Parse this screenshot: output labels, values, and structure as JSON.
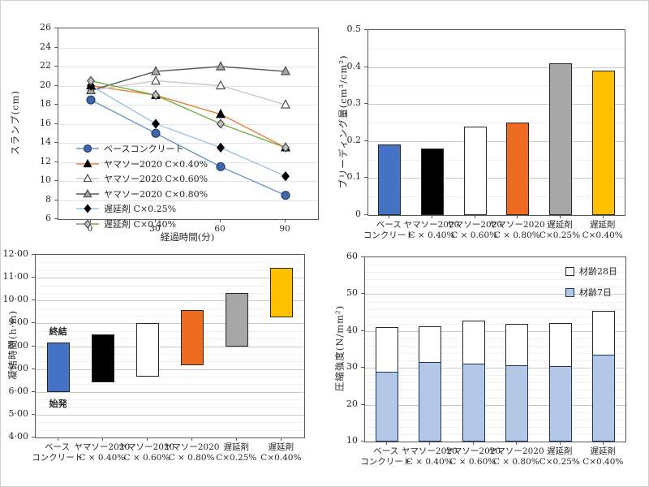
{
  "figure": {
    "background": "#ffffff",
    "text_color": "#262626"
  },
  "categories": [
    [
      "ベース",
      "コンクリート"
    ],
    [
      "ヤマソー2020",
      "C × 0.40%"
    ],
    [
      "ヤマソー2020",
      "C × 0.60%"
    ],
    [
      "ヤマソー2020",
      "C × 0.80%"
    ],
    [
      "遅延剤",
      "C×0.25%"
    ],
    [
      "遅延剤",
      "C×0.40%"
    ]
  ],
  "chart_data": [
    {
      "id": "slump",
      "type": "line",
      "ylabel": "スランプ(cm)",
      "xlabel": "経過時間(分)",
      "ylim": [
        6,
        26
      ],
      "grid_color": "#e3e3e3",
      "yticks": [
        {
          "v": 6,
          "label": "6"
        },
        {
          "v": 8,
          "label": "8"
        },
        {
          "v": 10,
          "label": "10"
        },
        {
          "v": 12,
          "label": "12"
        },
        {
          "v": 14,
          "label": "14"
        },
        {
          "v": 16,
          "label": "16"
        },
        {
          "v": 18,
          "label": "18"
        },
        {
          "v": 20,
          "label": "20"
        },
        {
          "v": 22,
          "label": "22"
        },
        {
          "v": 24,
          "label": "24"
        },
        {
          "v": 26,
          "label": "26"
        }
      ],
      "x": [
        0,
        30,
        60,
        90
      ],
      "xtick_labels": [
        "0",
        "30",
        "60",
        "90"
      ],
      "legend_position": "inside-bottom-left",
      "series": [
        {
          "name": "ベースコンクリート",
          "marker": "filled-circle",
          "marker_fill": "#4067ad",
          "marker_stroke": "#1f3864",
          "line_color": "#6e96c8",
          "values": [
            18.5,
            15.0,
            11.5,
            8.5
          ]
        },
        {
          "name": "ヤマソー2020 C×0.40%",
          "marker": "filled-triangle",
          "marker_fill": "#000000",
          "marker_stroke": "#000000",
          "line_color": "#ed7d31",
          "values": [
            20.0,
            19.0,
            17.0,
            13.5
          ]
        },
        {
          "name": "ヤマソー2020 C×0.60%",
          "marker": "open-triangle",
          "marker_fill": "#ffffff",
          "marker_stroke": "#404040",
          "line_color": "#c9c9c9",
          "values": [
            19.5,
            20.5,
            20.0,
            18.0
          ]
        },
        {
          "name": "ヤマソー2020 C×0.80%",
          "marker": "gray-triangle",
          "marker_fill": "#a6a6a6",
          "marker_stroke": "#404040",
          "line_color": "#595959",
          "values": [
            19.5,
            21.5,
            22.0,
            21.5
          ]
        },
        {
          "name": "遅延剤  C×0.25%",
          "marker": "filled-diamond",
          "marker_fill": "#000000",
          "marker_stroke": "#000000",
          "line_color": "#9dc3e6",
          "values": [
            20.0,
            16.0,
            13.5,
            10.5
          ]
        },
        {
          "name": "遅延剤  C×0.40%",
          "marker": "gray-diamond",
          "marker_fill": "#bfbfbf",
          "marker_stroke": "#404040",
          "line_color": "#70ad47",
          "values": [
            20.5,
            19.0,
            16.0,
            13.5
          ]
        }
      ]
    },
    {
      "id": "bleeding",
      "type": "bar",
      "ylabel": "ブリーディング量(cm³/cm²)",
      "ylim": [
        0,
        0.5
      ],
      "grid_color": "#c9c9c9",
      "minor_step": 0.05,
      "yticks": [
        {
          "v": 0,
          "label": "0"
        },
        {
          "v": 0.1,
          "label": "0.1"
        },
        {
          "v": 0.2,
          "label": "0.2"
        },
        {
          "v": 0.3,
          "label": "0.3"
        },
        {
          "v": 0.4,
          "label": "0.4"
        },
        {
          "v": 0.5,
          "label": "0.5"
        }
      ],
      "values": [
        0.19,
        0.18,
        0.24,
        0.25,
        0.41,
        0.39
      ],
      "colors": [
        "#4472c4",
        "#000000",
        "#ffffff",
        "#ed6b1e",
        "#a6a6a6",
        "#ffc000"
      ],
      "bar_border": "#262626"
    },
    {
      "id": "setting-time",
      "type": "floating-bar",
      "ylabel": "凝結時間(h·m)",
      "ylim": [
        4,
        12
      ],
      "grid_color": "#c9c9c9",
      "minor_step": 0.33333,
      "yticks": [
        {
          "v": 4,
          "label": "4·00"
        },
        {
          "v": 5,
          "label": "5·00"
        },
        {
          "v": 6,
          "label": "6·00"
        },
        {
          "v": 7,
          "label": "7·00"
        },
        {
          "v": 8,
          "label": "8·00"
        },
        {
          "v": 9,
          "label": "9·00"
        },
        {
          "v": 10,
          "label": "10·00"
        },
        {
          "v": 11,
          "label": "11·00"
        },
        {
          "v": 12,
          "label": "12·00"
        }
      ],
      "bars": [
        {
          "start": 6.0,
          "end": 8.17
        },
        {
          "start": 6.4,
          "end": 8.5
        },
        {
          "start": 6.67,
          "end": 9.0
        },
        {
          "start": 7.17,
          "end": 9.58
        },
        {
          "start": 8.0,
          "end": 10.33
        },
        {
          "start": 9.25,
          "end": 11.42
        }
      ],
      "colors": [
        "#4472c4",
        "#000000",
        "#ffffff",
        "#ed6b1e",
        "#a6a6a6",
        "#ffc000"
      ],
      "bar_border": "#262626",
      "annotations": [
        {
          "text": "終結",
          "cat_index": 0,
          "y": 8.65
        },
        {
          "text": "始発",
          "cat_index": 0,
          "y": 5.5
        }
      ]
    },
    {
      "id": "strength",
      "type": "overlap-bar",
      "ylabel": "圧縮強度(N/mm²)",
      "ylim": [
        10,
        60
      ],
      "grid_color": "#c9c9c9",
      "minor_step": 2,
      "yticks": [
        {
          "v": 10,
          "label": "10"
        },
        {
          "v": 20,
          "label": "20"
        },
        {
          "v": 30,
          "label": "30"
        },
        {
          "v": 40,
          "label": "40"
        },
        {
          "v": 50,
          "label": "50"
        },
        {
          "v": 60,
          "label": "60"
        }
      ],
      "legend_position": "inside-top-right",
      "series": [
        {
          "name": "材齢28日",
          "color": "#ffffff",
          "border": "#262626",
          "values": [
            41.0,
            41.3,
            42.8,
            42.0,
            42.2,
            45.5
          ]
        },
        {
          "name": "材齢7日",
          "color": "#b4c7e7",
          "border": "#17375e",
          "values": [
            29.0,
            31.5,
            31.2,
            30.8,
            30.5,
            33.5
          ]
        }
      ]
    }
  ]
}
